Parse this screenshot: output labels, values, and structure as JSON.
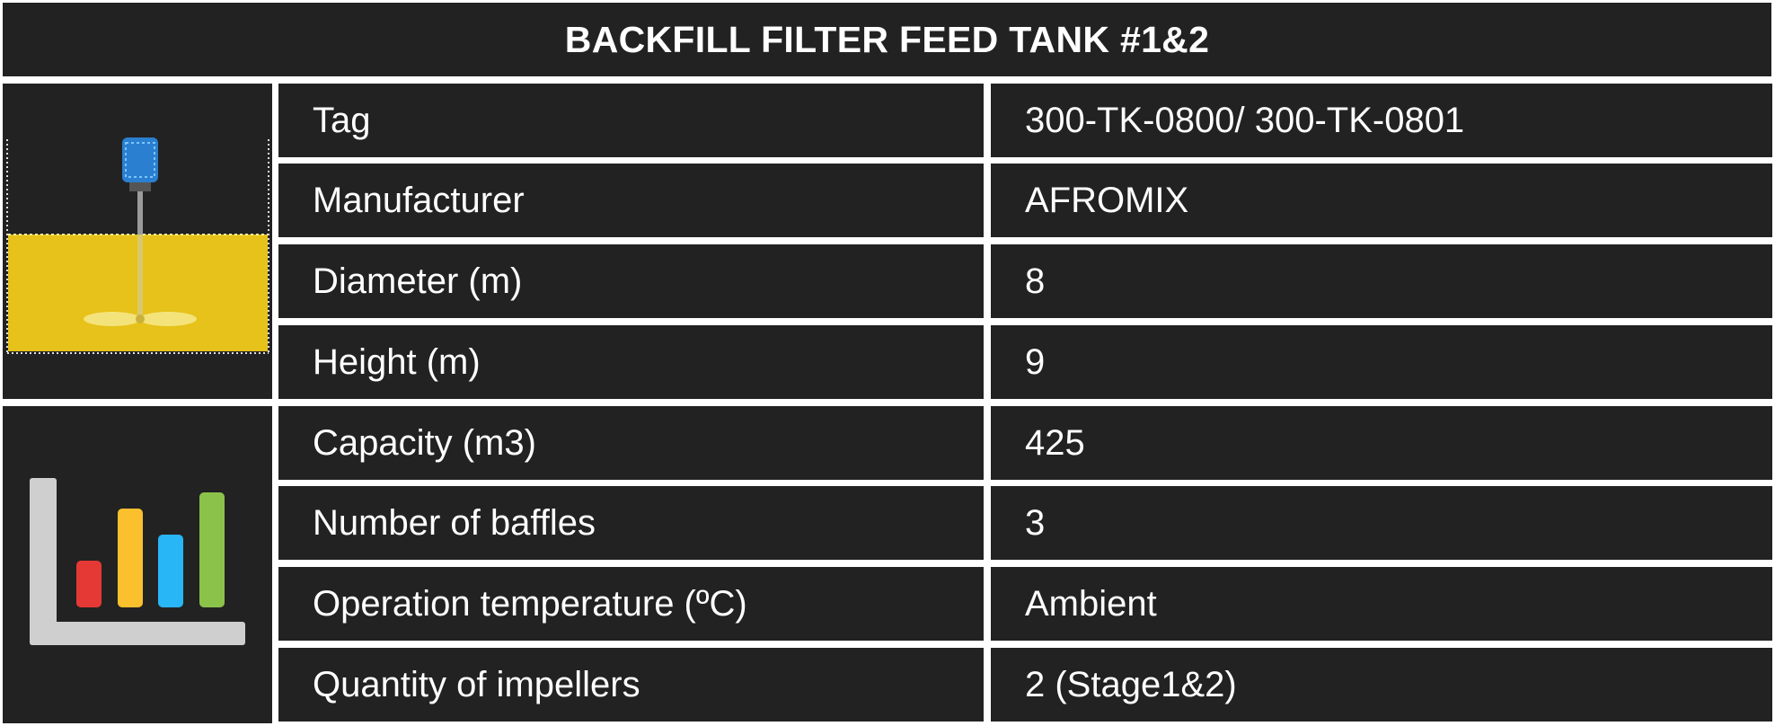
{
  "title": "BACKFILL FILTER FEED TANK #1&2",
  "icons": {
    "tank": "agitator-tank-icon",
    "chart": "bar-chart-icon"
  },
  "colors": {
    "background": "#222222",
    "grid": "#ffffff",
    "text": "#ffffff",
    "tank_fluid": "#e6c21a",
    "motor": "#2a7fd0",
    "bar_red": "#e53935",
    "bar_yellow": "#fbc02d",
    "bar_blue": "#29b6f6",
    "bar_green": "#8bc34a",
    "axis": "#cfcfcf"
  },
  "rows": [
    {
      "label": "Tag",
      "value": "300-TK-0800/ 300-TK-0801"
    },
    {
      "label": "Manufacturer",
      "value": "AFROMIX"
    },
    {
      "label": "Diameter (m)",
      "value": "8"
    },
    {
      "label": "Height (m)",
      "value": "9"
    },
    {
      "label": "Capacity (m3)",
      "value": "425"
    },
    {
      "label": "Number of baffles",
      "value": "3"
    },
    {
      "label": "Operation temperature (ºC)",
      "value": "Ambient"
    },
    {
      "label": "Quantity of impellers",
      "value": "2 (Stage1&2)"
    }
  ]
}
